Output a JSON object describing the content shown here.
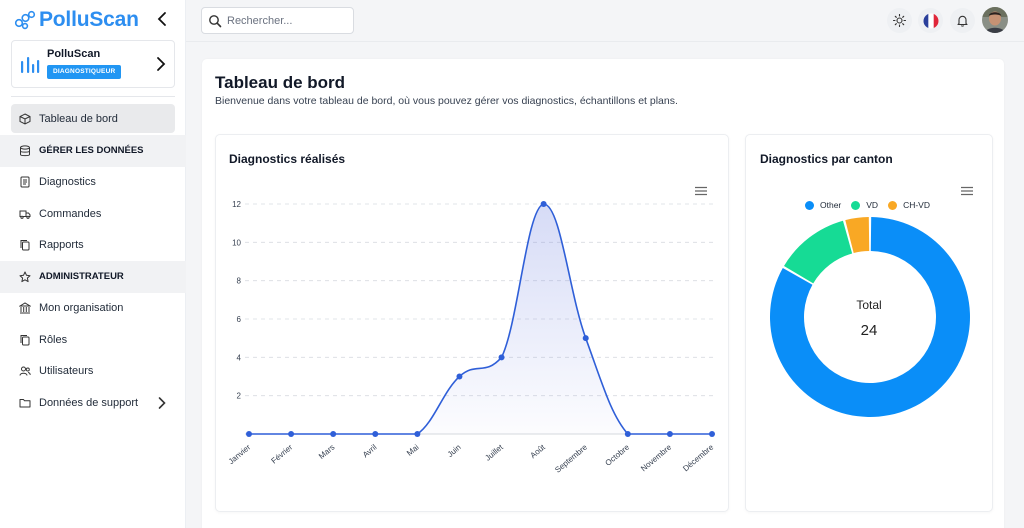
{
  "app": {
    "brand_name": "PolluScan"
  },
  "org": {
    "name": "PolluScan",
    "role_badge": "DIAGNOSTIQUEUR"
  },
  "sidebar": {
    "items": [
      {
        "label": "Tableau de bord",
        "icon": "cube-icon",
        "type": "item",
        "active": true
      },
      {
        "label": "GÉRER LES DONNÉES",
        "icon": "database-icon",
        "type": "section"
      },
      {
        "label": "Diagnostics",
        "icon": "clipboard-icon",
        "type": "item"
      },
      {
        "label": "Commandes",
        "icon": "truck-icon",
        "type": "item"
      },
      {
        "label": "Rapports",
        "icon": "copy-icon",
        "type": "item"
      },
      {
        "label": "ADMINISTRATEUR",
        "icon": "star-icon",
        "type": "section"
      },
      {
        "label": "Mon organisation",
        "icon": "building-icon",
        "type": "item"
      },
      {
        "label": "Rôles",
        "icon": "copy-icon",
        "type": "item"
      },
      {
        "label": "Utilisateurs",
        "icon": "users-icon",
        "type": "item"
      },
      {
        "label": "Données de support",
        "icon": "folder-icon",
        "type": "item",
        "has_chevron": true
      }
    ]
  },
  "search": {
    "placeholder": "Rechercher...",
    "value": ""
  },
  "topbar": {
    "icons": [
      "sun-icon",
      "french-flag-icon",
      "bell-icon",
      "user-avatar"
    ]
  },
  "page": {
    "title": "Tableau de bord",
    "subtitle": "Bienvenue dans votre tableau de bord, où vous pouvez gérer vos diagnostics, échantillons et plans."
  },
  "colors": {
    "brand": "#2d8ef0",
    "line": "#2f5fd8",
    "other": "#0a8ef8",
    "vd": "#16db95",
    "chvd": "#f9a824"
  },
  "chart_data": [
    {
      "type": "area",
      "title": "Diagnostics réalisés",
      "xlabel": "",
      "ylabel": "",
      "categories": [
        "Janvier",
        "Février",
        "Mars",
        "Avril",
        "Mai",
        "Juin",
        "Juillet",
        "Août",
        "Septembre",
        "Octobre",
        "Novembre",
        "Décembre"
      ],
      "series": [
        {
          "values": [
            0,
            0,
            0,
            0,
            0,
            3,
            4,
            12,
            5,
            0,
            0,
            0
          ]
        }
      ],
      "yticks": [
        2,
        4,
        6,
        8,
        10,
        12
      ],
      "ylim": [
        0,
        12
      ],
      "grid": true,
      "smooth": true
    },
    {
      "type": "pie",
      "title": "Diagnostics par canton",
      "donut": true,
      "legend_position": "top",
      "slices": [
        {
          "name": "Other",
          "value": 20
        },
        {
          "name": "VD",
          "value": 3
        },
        {
          "name": "CH-VD",
          "value": 1
        }
      ],
      "center_label": "Total",
      "center_value": "24"
    }
  ]
}
